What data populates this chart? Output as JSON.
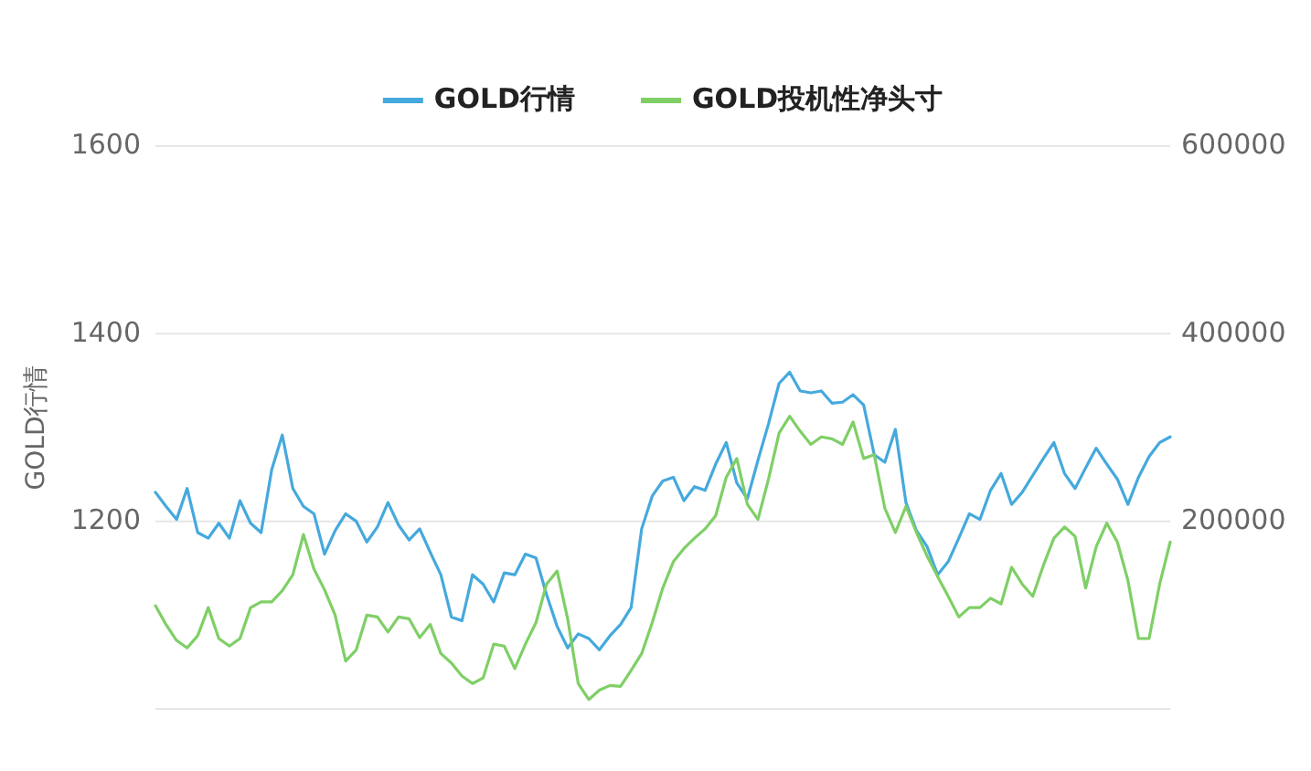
{
  "chart_data": {
    "type": "line",
    "ylabel": "GOLD行情",
    "legend": "top",
    "grid": "y",
    "tick_labels": "y",
    "ylim": [
      1000,
      1600
    ],
    "yticks": [
      {
        "value": 1000,
        "label": null
      },
      1200,
      1400,
      1600
    ],
    "y2lim": [
      0,
      600000
    ],
    "y2ticks": [
      200000,
      400000,
      600000
    ],
    "categories": [
      null,
      null,
      null,
      null,
      null,
      null,
      null,
      null,
      null,
      null,
      null,
      null,
      null,
      null,
      null,
      null,
      null,
      null,
      null,
      null,
      null,
      null,
      null,
      null,
      null,
      null,
      null,
      null,
      null,
      null,
      null,
      null,
      null,
      null,
      null,
      null,
      null,
      null,
      null,
      null,
      null,
      null,
      null,
      null,
      null,
      null,
      null,
      null,
      null,
      null,
      null,
      null,
      null,
      null,
      null,
      null,
      null,
      null,
      null,
      null,
      null,
      null,
      null,
      null,
      null,
      null,
      null,
      null,
      null,
      null,
      null,
      null,
      null,
      null,
      null,
      null,
      null,
      null,
      null,
      null,
      null,
      null,
      null,
      null,
      null,
      null,
      null,
      null,
      null,
      null,
      null,
      null,
      null,
      null,
      null,
      null,
      null
    ],
    "series": [
      {
        "name": "GOLD行情",
        "color": "#45a9dd",
        "values": [
          1231,
          1216,
          1202,
          1235,
          1188,
          1182,
          1198,
          1182,
          1222,
          1198,
          1188,
          1255,
          1292,
          1235,
          1216,
          1208,
          1165,
          1190,
          1208,
          1200,
          1178,
          1194,
          1220,
          1196,
          1180,
          1192,
          1167,
          1143,
          1098,
          1094,
          1143,
          1133,
          1114,
          1145,
          1143,
          1165,
          1161,
          1122,
          1088,
          1065,
          1080,
          1075,
          1063,
          1078,
          1090,
          1108,
          1192,
          1227,
          1243,
          1247,
          1222,
          1237,
          1233,
          1261,
          1284,
          1241,
          1224,
          1265,
          1304,
          1347,
          1359,
          1339,
          1337,
          1339,
          1326,
          1327,
          1335,
          1324,
          1271,
          1263,
          1298,
          1220,
          1190,
          1173,
          1143,
          1157,
          1182,
          1208,
          1202,
          1233,
          1251,
          1218,
          1231,
          1249,
          1267,
          1284,
          1251,
          1235,
          1257,
          1278,
          1261,
          1245,
          1218,
          1247,
          1269,
          1284,
          1290
        ]
      },
      {
        "name": "GOLD投机性净头寸",
        "color": "#7fcf66",
        "axis": "y2",
        "values": [
          110000,
          90000,
          73000,
          65000,
          78000,
          108000,
          75000,
          67000,
          75000,
          108000,
          114000,
          114000,
          126000,
          143000,
          186000,
          149000,
          127000,
          100000,
          51000,
          63000,
          100000,
          98000,
          82000,
          98000,
          96000,
          76000,
          90000,
          59000,
          49000,
          35000,
          27000,
          33000,
          69000,
          67000,
          43000,
          69000,
          92000,
          133000,
          147000,
          96000,
          27000,
          10000,
          20000,
          25000,
          24000,
          41000,
          59000,
          92000,
          129000,
          157000,
          171000,
          182000,
          192000,
          206000,
          247000,
          267000,
          218000,
          202000,
          245000,
          294000,
          312000,
          296000,
          282000,
          290000,
          288000,
          282000,
          306000,
          267000,
          271000,
          214000,
          188000,
          216000,
          188000,
          163000,
          141000,
          120000,
          98000,
          108000,
          108000,
          118000,
          112000,
          151000,
          133000,
          120000,
          153000,
          182000,
          194000,
          184000,
          129000,
          173000,
          198000,
          178000,
          137000,
          75000,
          75000,
          133000,
          178000
        ]
      }
    ]
  }
}
